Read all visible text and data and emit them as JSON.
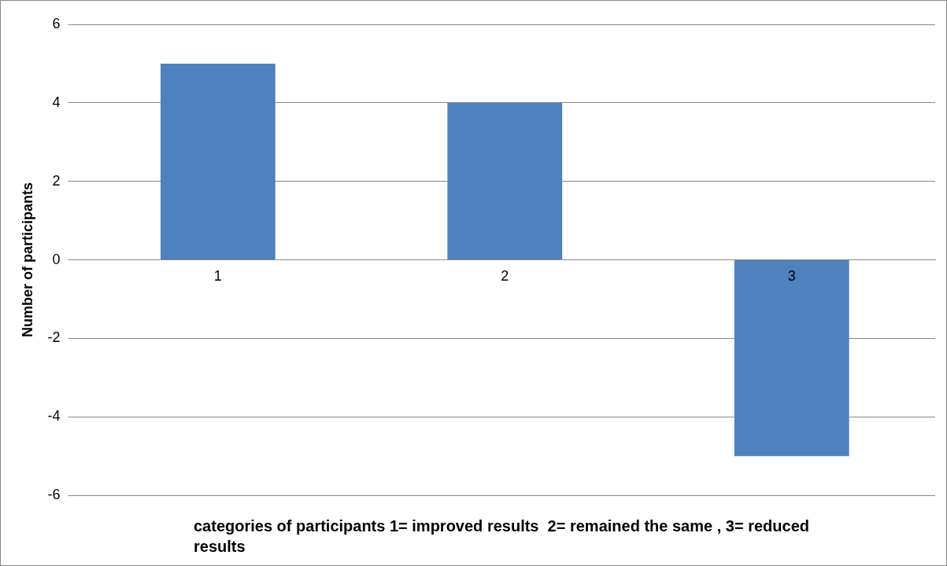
{
  "chart_data": {
    "type": "bar",
    "xlabel": "categories of participants 1= improved results  2= remained the same , 3= reduced results",
    "ylabel": "Number of participants",
    "categories": [
      "1",
      "2",
      "3"
    ],
    "series": [
      {
        "color": "#4f81bd",
        "values": [
          5,
          4,
          -5
        ]
      }
    ],
    "ylim": [
      -6,
      6
    ],
    "yticks": [
      -6,
      -4,
      -2,
      0,
      2,
      4,
      6
    ],
    "grid": "y",
    "legend": false
  }
}
